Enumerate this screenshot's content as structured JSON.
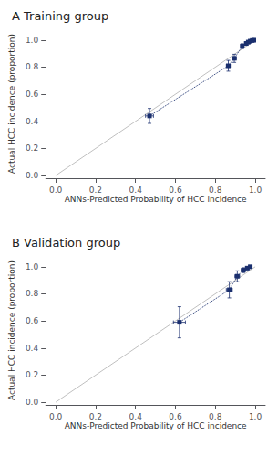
{
  "chart_data": [
    {
      "type": "line",
      "title": "A Training group",
      "x_label": "ANNs-Predicted Probability of HCC incidence",
      "y_label": "Actual HCC incidence (proportion)",
      "x": [
        0.47,
        0.865,
        0.895,
        0.935,
        0.955,
        0.965,
        0.975,
        0.985,
        0.993
      ],
      "values": [
        0.44,
        0.81,
        0.865,
        0.955,
        0.975,
        0.985,
        0.992,
        0.997,
        0.999
      ],
      "yerr_lo": [
        0.055,
        0.04,
        0.03,
        0.018,
        0.012,
        0.008,
        0.005,
        0.003,
        0.002
      ],
      "yerr_hi": [
        0.055,
        0.04,
        0.03,
        0.018,
        0.012,
        0.008,
        0.005,
        0.003,
        0.002
      ],
      "xerr_lo": [
        0.02,
        0.01,
        0.01,
        0.007,
        0.006,
        0.005,
        0.004,
        0.003,
        0.002
      ],
      "xerr_hi": [
        0.02,
        0.01,
        0.01,
        0.007,
        0.006,
        0.005,
        0.004,
        0.003,
        0.002
      ],
      "diagonal": {
        "x": [
          0,
          1
        ],
        "y": [
          0,
          1
        ],
        "color": "#c0c0c0"
      },
      "color": "#1a2f6e",
      "marker": "square",
      "line_style": "dotted",
      "xlim": [
        -0.05,
        1.05
      ],
      "ylim": [
        -0.02,
        1.08
      ],
      "xticks": [
        {
          "value": 0.0,
          "label": "0.0"
        },
        0.2,
        0.4,
        0.6,
        0.8,
        {
          "value": 1.0,
          "label": "1.0"
        }
      ],
      "yticks": [
        {
          "value": 0.0,
          "label": "0.0"
        },
        0.2,
        0.4,
        0.6,
        0.8,
        {
          "value": 1.0,
          "label": "1.0"
        }
      ],
      "grid": false
    },
    {
      "type": "line",
      "title": "B Validation group",
      "x_label": "ANNs-Predicted Probability of HCC incidence",
      "y_label": "Actual HCC incidence (proportion)",
      "x": [
        0.62,
        0.87,
        0.91,
        0.94,
        0.96,
        0.975
      ],
      "values": [
        0.59,
        0.83,
        0.93,
        0.975,
        0.99,
        1.0
      ],
      "yerr_lo": [
        0.115,
        0.06,
        0.04,
        0.018,
        0.01,
        0.005
      ],
      "yerr_hi": [
        0.115,
        0.06,
        0.04,
        0.018,
        0.01,
        0.005
      ],
      "xerr_lo": [
        0.03,
        0.015,
        0.012,
        0.01,
        0.008,
        0.005
      ],
      "xerr_hi": [
        0.03,
        0.015,
        0.012,
        0.01,
        0.008,
        0.005
      ],
      "diagonal": {
        "x": [
          0,
          1
        ],
        "y": [
          0,
          1
        ],
        "color": "#c0c0c0"
      },
      "color": "#1a2f6e",
      "marker": "square",
      "line_style": "dotted",
      "xlim": [
        -0.05,
        1.05
      ],
      "ylim": [
        -0.02,
        1.08
      ],
      "xticks": [
        {
          "value": 0.0,
          "label": "0.0"
        },
        0.2,
        0.4,
        0.6,
        0.8,
        {
          "value": 1.0,
          "label": "1.0"
        }
      ],
      "yticks": [
        {
          "value": 0.0,
          "label": "0.0"
        },
        0.2,
        0.4,
        0.6,
        0.8,
        {
          "value": 1.0,
          "label": "1.0"
        }
      ],
      "grid": false
    }
  ]
}
